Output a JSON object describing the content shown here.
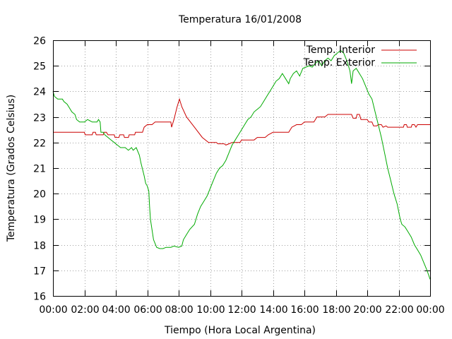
{
  "chart_data": {
    "type": "line",
    "title": "Temperatura 16/01/2008",
    "xlabel": "Tiempo (Hora Local Argentina)",
    "ylabel": "Temperatura (Grados Celsius)",
    "xlim": [
      0,
      24
    ],
    "ylim": [
      16,
      26
    ],
    "x_ticks": [
      0,
      2,
      4,
      6,
      8,
      10,
      12,
      14,
      16,
      18,
      20,
      22,
      24
    ],
    "x_tick_labels": [
      "00:00",
      "02:00",
      "04:00",
      "06:00",
      "08:00",
      "10:00",
      "12:00",
      "14:00",
      "16:00",
      "18:00",
      "20:00",
      "22:00",
      "00:00"
    ],
    "y_ticks": [
      16,
      17,
      18,
      19,
      20,
      21,
      22,
      23,
      24,
      25,
      26
    ],
    "y_tick_labels": [
      "16",
      "17",
      "18",
      "19",
      "20",
      "21",
      "22",
      "23",
      "24",
      "25",
      "26"
    ],
    "grid": true,
    "legend_position": "top-right",
    "series": [
      {
        "name": "Temp. Interior",
        "color": "#cc0000",
        "points": [
          [
            0,
            22.4
          ],
          [
            1.5,
            22.4
          ],
          [
            2.0,
            22.4
          ],
          [
            2.05,
            22.3
          ],
          [
            2.5,
            22.3
          ],
          [
            2.55,
            22.4
          ],
          [
            2.7,
            22.4
          ],
          [
            2.75,
            22.3
          ],
          [
            3.2,
            22.3
          ],
          [
            3.25,
            22.4
          ],
          [
            3.4,
            22.4
          ],
          [
            3.5,
            22.3
          ],
          [
            3.9,
            22.3
          ],
          [
            3.95,
            22.2
          ],
          [
            4.2,
            22.2
          ],
          [
            4.25,
            22.3
          ],
          [
            4.5,
            22.3
          ],
          [
            4.55,
            22.2
          ],
          [
            4.8,
            22.2
          ],
          [
            4.85,
            22.3
          ],
          [
            5.2,
            22.3
          ],
          [
            5.25,
            22.4
          ],
          [
            5.7,
            22.4
          ],
          [
            5.8,
            22.6
          ],
          [
            6.0,
            22.7
          ],
          [
            6.3,
            22.7
          ],
          [
            6.5,
            22.8
          ],
          [
            7.0,
            22.8
          ],
          [
            7.5,
            22.8
          ],
          [
            7.55,
            22.6
          ],
          [
            7.7,
            22.9
          ],
          [
            7.9,
            23.4
          ],
          [
            8.05,
            23.7
          ],
          [
            8.2,
            23.4
          ],
          [
            8.5,
            23.0
          ],
          [
            9.0,
            22.6
          ],
          [
            9.5,
            22.2
          ],
          [
            9.9,
            22.0
          ],
          [
            10.4,
            22.0
          ],
          [
            10.5,
            21.95
          ],
          [
            10.9,
            21.95
          ],
          [
            11.0,
            21.9
          ],
          [
            11.2,
            21.95
          ],
          [
            11.4,
            22.0
          ],
          [
            11.9,
            22.0
          ],
          [
            12.0,
            22.1
          ],
          [
            12.8,
            22.1
          ],
          [
            13.0,
            22.2
          ],
          [
            13.5,
            22.2
          ],
          [
            13.7,
            22.3
          ],
          [
            14.0,
            22.4
          ],
          [
            15.0,
            22.4
          ],
          [
            15.2,
            22.6
          ],
          [
            15.5,
            22.7
          ],
          [
            15.8,
            22.7
          ],
          [
            16.0,
            22.8
          ],
          [
            16.6,
            22.8
          ],
          [
            16.8,
            23.0
          ],
          [
            17.3,
            23.0
          ],
          [
            17.5,
            23.1
          ],
          [
            18.0,
            23.1
          ],
          [
            19.0,
            23.1
          ],
          [
            19.1,
            22.95
          ],
          [
            19.3,
            22.95
          ],
          [
            19.35,
            23.1
          ],
          [
            19.5,
            23.1
          ],
          [
            19.6,
            22.9
          ],
          [
            20.0,
            22.9
          ],
          [
            20.1,
            22.8
          ],
          [
            20.3,
            22.8
          ],
          [
            20.4,
            22.65
          ],
          [
            20.6,
            22.65
          ],
          [
            20.7,
            22.7
          ],
          [
            20.9,
            22.7
          ],
          [
            21.0,
            22.6
          ],
          [
            21.2,
            22.65
          ],
          [
            21.3,
            22.6
          ],
          [
            22.3,
            22.6
          ],
          [
            22.35,
            22.7
          ],
          [
            22.5,
            22.7
          ],
          [
            22.55,
            22.6
          ],
          [
            22.8,
            22.6
          ],
          [
            22.85,
            22.7
          ],
          [
            23.0,
            22.7
          ],
          [
            23.1,
            22.6
          ],
          [
            23.2,
            22.7
          ],
          [
            24.0,
            22.7
          ]
        ]
      },
      {
        "name": "Temp. Exterior",
        "color": "#00aa00",
        "points": [
          [
            0,
            24.0
          ],
          [
            0.1,
            23.8
          ],
          [
            0.3,
            23.7
          ],
          [
            0.6,
            23.7
          ],
          [
            0.7,
            23.6
          ],
          [
            0.9,
            23.5
          ],
          [
            1.0,
            23.4
          ],
          [
            1.2,
            23.2
          ],
          [
            1.4,
            23.1
          ],
          [
            1.5,
            22.9
          ],
          [
            1.7,
            22.8
          ],
          [
            2.0,
            22.8
          ],
          [
            2.2,
            22.9
          ],
          [
            2.5,
            22.8
          ],
          [
            2.8,
            22.8
          ],
          [
            2.9,
            22.9
          ],
          [
            3.0,
            22.8
          ],
          [
            3.05,
            22.4
          ],
          [
            3.2,
            22.4
          ],
          [
            3.3,
            22.3
          ],
          [
            3.5,
            22.2
          ],
          [
            3.7,
            22.1
          ],
          [
            3.9,
            22.0
          ],
          [
            4.1,
            21.9
          ],
          [
            4.3,
            21.8
          ],
          [
            4.6,
            21.8
          ],
          [
            4.8,
            21.7
          ],
          [
            5.0,
            21.8
          ],
          [
            5.1,
            21.7
          ],
          [
            5.3,
            21.8
          ],
          [
            5.5,
            21.5
          ],
          [
            5.6,
            21.2
          ],
          [
            5.8,
            20.7
          ],
          [
            5.9,
            20.4
          ],
          [
            6.0,
            20.3
          ],
          [
            6.1,
            20.1
          ],
          [
            6.15,
            19.5
          ],
          [
            6.2,
            19.0
          ],
          [
            6.3,
            18.6
          ],
          [
            6.4,
            18.2
          ],
          [
            6.6,
            17.9
          ],
          [
            6.8,
            17.85
          ],
          [
            7.0,
            17.85
          ],
          [
            7.2,
            17.9
          ],
          [
            7.5,
            17.9
          ],
          [
            7.7,
            17.95
          ],
          [
            8.0,
            17.9
          ],
          [
            8.2,
            17.95
          ],
          [
            8.3,
            18.2
          ],
          [
            8.5,
            18.4
          ],
          [
            8.7,
            18.6
          ],
          [
            9.0,
            18.8
          ],
          [
            9.2,
            19.2
          ],
          [
            9.4,
            19.5
          ],
          [
            9.6,
            19.7
          ],
          [
            9.8,
            19.9
          ],
          [
            10.0,
            20.2
          ],
          [
            10.2,
            20.5
          ],
          [
            10.4,
            20.8
          ],
          [
            10.6,
            21.0
          ],
          [
            10.8,
            21.1
          ],
          [
            11.0,
            21.3
          ],
          [
            11.2,
            21.6
          ],
          [
            11.4,
            21.9
          ],
          [
            11.6,
            22.1
          ],
          [
            11.8,
            22.3
          ],
          [
            12.0,
            22.5
          ],
          [
            12.2,
            22.7
          ],
          [
            12.4,
            22.9
          ],
          [
            12.6,
            23.0
          ],
          [
            12.8,
            23.2
          ],
          [
            13.0,
            23.3
          ],
          [
            13.2,
            23.4
          ],
          [
            13.4,
            23.6
          ],
          [
            13.6,
            23.8
          ],
          [
            13.8,
            24.0
          ],
          [
            14.0,
            24.2
          ],
          [
            14.2,
            24.4
          ],
          [
            14.4,
            24.5
          ],
          [
            14.6,
            24.7
          ],
          [
            14.8,
            24.5
          ],
          [
            15.0,
            24.3
          ],
          [
            15.1,
            24.5
          ],
          [
            15.3,
            24.7
          ],
          [
            15.5,
            24.8
          ],
          [
            15.7,
            24.6
          ],
          [
            15.9,
            24.9
          ],
          [
            16.1,
            24.95
          ],
          [
            16.3,
            25.0
          ],
          [
            16.5,
            24.95
          ],
          [
            16.7,
            25.1
          ],
          [
            16.9,
            25.2
          ],
          [
            17.1,
            25.0
          ],
          [
            17.3,
            25.2
          ],
          [
            17.5,
            25.3
          ],
          [
            17.7,
            25.2
          ],
          [
            17.9,
            25.4
          ],
          [
            18.1,
            25.5
          ],
          [
            18.3,
            25.6
          ],
          [
            18.5,
            25.5
          ],
          [
            18.7,
            25.2
          ],
          [
            18.9,
            24.8
          ],
          [
            19.0,
            24.3
          ],
          [
            19.1,
            24.8
          ],
          [
            19.3,
            24.9
          ],
          [
            19.5,
            24.7
          ],
          [
            19.7,
            24.5
          ],
          [
            19.9,
            24.2
          ],
          [
            20.1,
            23.9
          ],
          [
            20.3,
            23.7
          ],
          [
            20.5,
            23.2
          ],
          [
            20.7,
            22.7
          ],
          [
            20.9,
            22.2
          ],
          [
            21.1,
            21.6
          ],
          [
            21.3,
            21.0
          ],
          [
            21.5,
            20.5
          ],
          [
            21.7,
            20.0
          ],
          [
            21.9,
            19.6
          ],
          [
            22.0,
            19.3
          ],
          [
            22.1,
            19.0
          ],
          [
            22.2,
            18.8
          ],
          [
            22.4,
            18.7
          ],
          [
            22.6,
            18.5
          ],
          [
            22.8,
            18.3
          ],
          [
            23.0,
            18.0
          ],
          [
            23.2,
            17.8
          ],
          [
            23.4,
            17.6
          ],
          [
            23.6,
            17.3
          ],
          [
            23.8,
            17.0
          ],
          [
            24.0,
            16.65
          ]
        ]
      }
    ]
  }
}
